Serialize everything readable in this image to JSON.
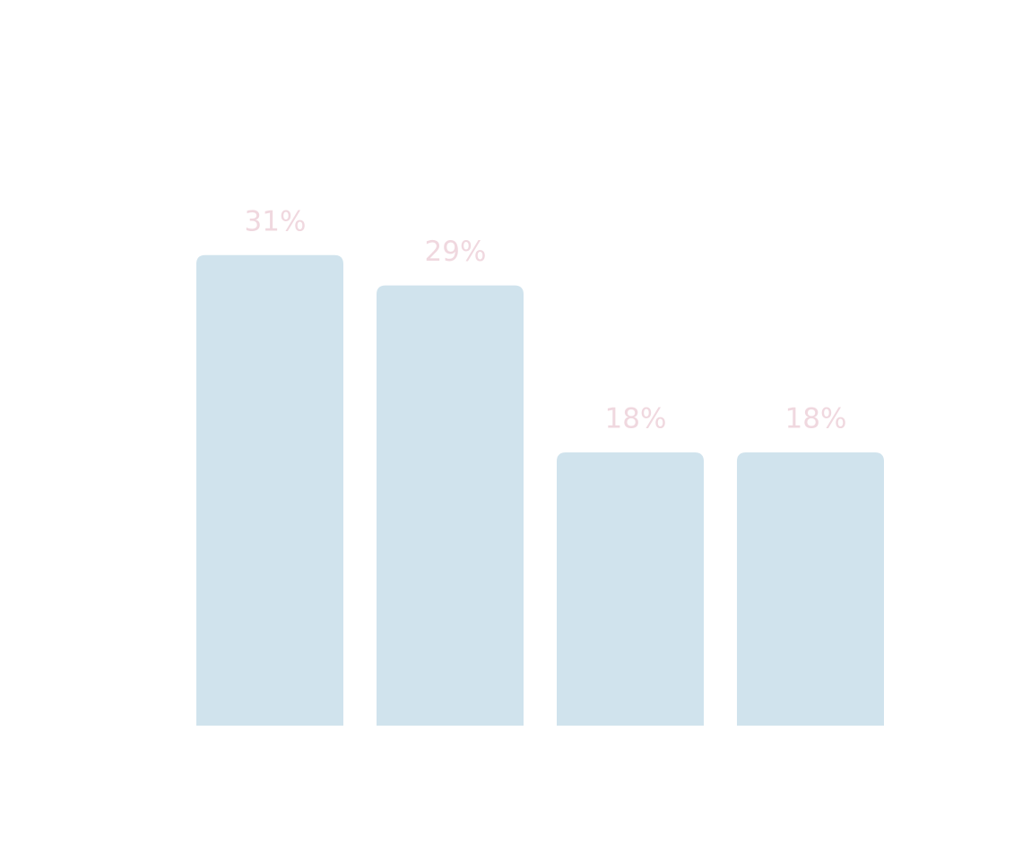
{
  "chart_data": {
    "type": "bar",
    "categories": [
      null,
      null,
      null,
      null
    ],
    "values": [
      31,
      29,
      18,
      18
    ],
    "value_labels": [
      "31%",
      "29%",
      "18%",
      "18%"
    ],
    "color": "#d0e3ed",
    "label_color": "#f0d8df",
    "ylim": [
      0,
      35
    ]
  }
}
